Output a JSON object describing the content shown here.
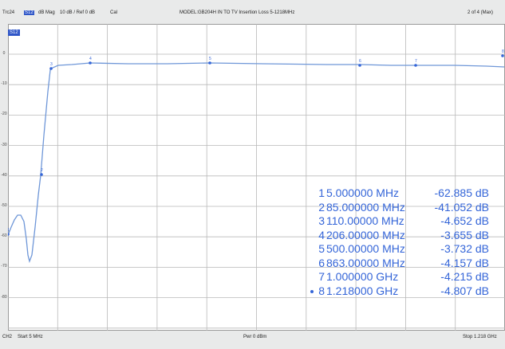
{
  "header": {
    "trace": "Trc24",
    "param": "S12",
    "format": "dB Mag",
    "scale": "10 dB / Ref 0 dB",
    "cal": "Cal",
    "title": "MODEL:GB204H IN TO TV Insertion Loss 5-1218MHz",
    "page": "2 of 4 (Max)"
  },
  "trace_badge": "S12",
  "footer": {
    "channel": "CH2",
    "start": "Start 5 MHz",
    "power": "Pwr 0 dBm",
    "stop": "Stop 1.218 GHz"
  },
  "y_ticks": [
    "0",
    "-10",
    "-20",
    "-30",
    "-40",
    "-50",
    "-60",
    "-70",
    "-80"
  ],
  "markers": [
    {
      "id": "1",
      "freq": "5.000000 MHz",
      "value": "-62.885 dB"
    },
    {
      "id": "2",
      "freq": "85.000000 MHz",
      "value": "-41.052 dB"
    },
    {
      "id": "3",
      "freq": "110.00000 MHz",
      "value": "-4.652 dB"
    },
    {
      "id": "4",
      "freq": "206.00000 MHz",
      "value": "-3.655 dB"
    },
    {
      "id": "5",
      "freq": "500.00000 MHz",
      "value": "-3.732 dB"
    },
    {
      "id": "6",
      "freq": "863.00000 MHz",
      "value": "-4.157 dB"
    },
    {
      "id": "7",
      "freq": "1.000000 GHz",
      "value": "-4.215 dB"
    },
    {
      "id": "8",
      "freq": "1.218000 GHz",
      "value": "-4.807 dB"
    }
  ],
  "active_marker": "8",
  "colors": {
    "trace": "#6f97d8",
    "marker_text": "#3465d8",
    "grid": "#b9b9b9",
    "accent": "#2f56c8"
  }
}
